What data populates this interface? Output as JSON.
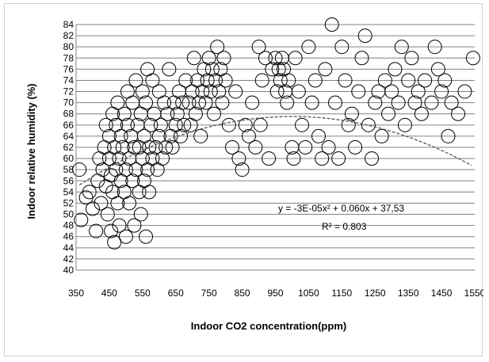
{
  "chart_data": {
    "type": "scatter",
    "title": "",
    "xlabel": "Indoor CO2 concentration(ppm)",
    "ylabel": "Indoor relative humidity (%)",
    "xlim": [
      350,
      1550
    ],
    "ylim": [
      40,
      84
    ],
    "x_ticks": [
      350,
      450,
      550,
      650,
      750,
      850,
      950,
      1050,
      1150,
      1250,
      1350,
      1450,
      1550
    ],
    "y_ticks": [
      40,
      42,
      44,
      46,
      48,
      50,
      52,
      54,
      56,
      58,
      60,
      62,
      64,
      66,
      68,
      70,
      72,
      74,
      76,
      78,
      80,
      82,
      84
    ],
    "grid": "horizontal",
    "legend": "none",
    "marker": "open-circle",
    "trendline": {
      "type": "polynomial",
      "coefficients": [
        -3e-05,
        0.06,
        37.53
      ],
      "equation_label": "y = -3E-05x² + 0.060x + 37,53",
      "r2_label": "R² = 0.803"
    },
    "series": [
      {
        "points": [
          [
            360,
            58
          ],
          [
            365,
            49
          ],
          [
            380,
            53
          ],
          [
            390,
            54
          ],
          [
            400,
            51
          ],
          [
            410,
            47
          ],
          [
            415,
            56
          ],
          [
            420,
            60
          ],
          [
            425,
            52
          ],
          [
            430,
            58
          ],
          [
            435,
            62
          ],
          [
            440,
            55
          ],
          [
            440,
            66
          ],
          [
            445,
            50
          ],
          [
            450,
            60
          ],
          [
            450,
            64
          ],
          [
            455,
            47
          ],
          [
            455,
            57
          ],
          [
            460,
            68
          ],
          [
            460,
            54
          ],
          [
            465,
            62
          ],
          [
            465,
            45
          ],
          [
            470,
            58
          ],
          [
            470,
            66
          ],
          [
            475,
            52
          ],
          [
            475,
            70
          ],
          [
            480,
            60
          ],
          [
            480,
            48
          ],
          [
            485,
            64
          ],
          [
            485,
            56
          ],
          [
            490,
            62
          ],
          [
            495,
            54
          ],
          [
            495,
            68
          ],
          [
            500,
            58
          ],
          [
            500,
            46
          ],
          [
            505,
            66
          ],
          [
            505,
            72
          ],
          [
            510,
            60
          ],
          [
            510,
            52
          ],
          [
            515,
            64
          ],
          [
            520,
            56
          ],
          [
            520,
            70
          ],
          [
            525,
            62
          ],
          [
            525,
            48
          ],
          [
            530,
            58
          ],
          [
            530,
            74
          ],
          [
            535,
            66
          ],
          [
            540,
            54
          ],
          [
            540,
            62
          ],
          [
            545,
            68
          ],
          [
            545,
            50
          ],
          [
            550,
            60
          ],
          [
            550,
            72
          ],
          [
            555,
            56
          ],
          [
            555,
            64
          ],
          [
            560,
            46
          ],
          [
            560,
            70
          ],
          [
            565,
            58
          ],
          [
            565,
            76
          ],
          [
            570,
            62
          ],
          [
            570,
            54
          ],
          [
            575,
            66
          ],
          [
            580,
            60
          ],
          [
            580,
            74
          ],
          [
            585,
            68
          ],
          [
            590,
            62
          ],
          [
            595,
            58
          ],
          [
            600,
            64
          ],
          [
            600,
            72
          ],
          [
            605,
            66
          ],
          [
            610,
            60
          ],
          [
            615,
            70
          ],
          [
            620,
            62
          ],
          [
            625,
            68
          ],
          [
            630,
            76
          ],
          [
            635,
            64
          ],
          [
            640,
            62
          ],
          [
            645,
            70
          ],
          [
            650,
            66
          ],
          [
            655,
            68
          ],
          [
            660,
            72
          ],
          [
            665,
            64
          ],
          [
            670,
            70
          ],
          [
            675,
            66
          ],
          [
            680,
            74
          ],
          [
            690,
            70
          ],
          [
            695,
            66
          ],
          [
            700,
            72
          ],
          [
            705,
            78
          ],
          [
            710,
            68
          ],
          [
            715,
            74
          ],
          [
            720,
            70
          ],
          [
            725,
            64
          ],
          [
            730,
            72
          ],
          [
            735,
            76
          ],
          [
            740,
            70
          ],
          [
            745,
            74
          ],
          [
            750,
            78
          ],
          [
            755,
            72
          ],
          [
            760,
            76
          ],
          [
            765,
            68
          ],
          [
            770,
            74
          ],
          [
            775,
            80
          ],
          [
            780,
            72
          ],
          [
            785,
            76
          ],
          [
            790,
            70
          ],
          [
            795,
            78
          ],
          [
            800,
            74
          ],
          [
            810,
            66
          ],
          [
            820,
            62
          ],
          [
            830,
            72
          ],
          [
            840,
            60
          ],
          [
            850,
            58
          ],
          [
            860,
            66
          ],
          [
            870,
            64
          ],
          [
            880,
            70
          ],
          [
            890,
            62
          ],
          [
            900,
            80
          ],
          [
            905,
            66
          ],
          [
            910,
            74
          ],
          [
            920,
            78
          ],
          [
            930,
            60
          ],
          [
            940,
            76
          ],
          [
            950,
            78
          ],
          [
            955,
            72
          ],
          [
            960,
            76
          ],
          [
            965,
            74
          ],
          [
            970,
            78
          ],
          [
            975,
            76
          ],
          [
            980,
            72
          ],
          [
            985,
            70
          ],
          [
            990,
            74
          ],
          [
            1000,
            62
          ],
          [
            1005,
            60
          ],
          [
            1010,
            78
          ],
          [
            1020,
            72
          ],
          [
            1030,
            66
          ],
          [
            1040,
            62
          ],
          [
            1050,
            80
          ],
          [
            1060,
            70
          ],
          [
            1070,
            74
          ],
          [
            1080,
            64
          ],
          [
            1090,
            60
          ],
          [
            1100,
            76
          ],
          [
            1110,
            62
          ],
          [
            1120,
            84
          ],
          [
            1130,
            70
          ],
          [
            1140,
            60
          ],
          [
            1150,
            80
          ],
          [
            1160,
            74
          ],
          [
            1170,
            66
          ],
          [
            1180,
            68
          ],
          [
            1190,
            62
          ],
          [
            1200,
            72
          ],
          [
            1210,
            78
          ],
          [
            1220,
            82
          ],
          [
            1230,
            66
          ],
          [
            1240,
            60
          ],
          [
            1250,
            70
          ],
          [
            1260,
            72
          ],
          [
            1270,
            64
          ],
          [
            1280,
            74
          ],
          [
            1290,
            68
          ],
          [
            1300,
            72
          ],
          [
            1310,
            76
          ],
          [
            1320,
            70
          ],
          [
            1330,
            80
          ],
          [
            1340,
            66
          ],
          [
            1350,
            74
          ],
          [
            1360,
            78
          ],
          [
            1370,
            70
          ],
          [
            1380,
            72
          ],
          [
            1390,
            68
          ],
          [
            1400,
            74
          ],
          [
            1420,
            70
          ],
          [
            1430,
            80
          ],
          [
            1440,
            76
          ],
          [
            1450,
            72
          ],
          [
            1460,
            74
          ],
          [
            1470,
            64
          ],
          [
            1480,
            70
          ],
          [
            1500,
            68
          ],
          [
            1520,
            72
          ],
          [
            1545,
            78
          ]
        ]
      }
    ]
  }
}
